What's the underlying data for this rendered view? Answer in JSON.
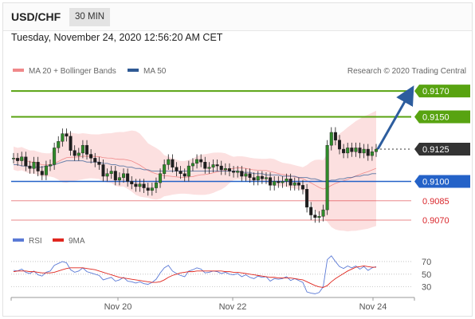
{
  "header": {
    "pair": "USD/CHF",
    "timeframe": "30 MIN",
    "date": "Tuesday, November 24, 2020 12:56:20 AM CET"
  },
  "legend": {
    "ma20": "MA 20 + Bollinger Bands",
    "ma50": "MA 50",
    "rsi": "RSI",
    "rsi_ma": "9MA",
    "credit": "Research © 2020 Trading Central"
  },
  "colors": {
    "green_level": "#58a311",
    "blue_level": "#2462c8",
    "red_level": "#d9262b",
    "dark_level": "#333333",
    "bollinger": "#fbd5d5",
    "ma50": "#2f5a94",
    "rsi": "#5b7ad6",
    "rsi_ma": "#e0271f",
    "arrow": "#2d5d9e"
  },
  "chart_data": {
    "type": "line",
    "title": "USD/CHF",
    "price_axis": {
      "ylim": [
        0.9062,
        0.918
      ]
    },
    "x_ticks": [
      "Nov 20",
      "Nov 22",
      "Nov 24"
    ],
    "levels": [
      {
        "label": "0.9170",
        "value": 0.917,
        "kind": "resistance",
        "style": "green"
      },
      {
        "label": "0.9150",
        "value": 0.915,
        "kind": "resistance",
        "style": "green"
      },
      {
        "label": "0.9125",
        "value": 0.9125,
        "kind": "last",
        "style": "dark"
      },
      {
        "label": "0.9100",
        "value": 0.91,
        "kind": "pivot",
        "style": "blue"
      },
      {
        "label": "0.9085",
        "value": 0.9085,
        "kind": "support",
        "style": "red"
      },
      {
        "label": "0.9070",
        "value": 0.907,
        "kind": "support",
        "style": "red"
      }
    ],
    "price_series": [
      {
        "name": "USD/CHF",
        "values": [
          0.9118,
          0.9116,
          0.9119,
          0.9112,
          0.911,
          0.9115,
          0.9108,
          0.9105,
          0.9112,
          0.9113,
          0.9126,
          0.9131,
          0.9137,
          0.9135,
          0.9124,
          0.912,
          0.9122,
          0.9128,
          0.9121,
          0.9118,
          0.9115,
          0.9113,
          0.9104,
          0.9106,
          0.9108,
          0.9101,
          0.9103,
          0.9106,
          0.91,
          0.9098,
          0.9096,
          0.9098,
          0.9095,
          0.9093,
          0.9095,
          0.9099,
          0.9106,
          0.9113,
          0.9117,
          0.9111,
          0.9108,
          0.9106,
          0.9104,
          0.9112,
          0.9114,
          0.9117,
          0.9115,
          0.911,
          0.9111,
          0.9113,
          0.9112,
          0.9109,
          0.911,
          0.9108,
          0.9107,
          0.9108,
          0.9104,
          0.9106,
          0.9103,
          0.9101,
          0.9104,
          0.9102,
          0.9103,
          0.9097,
          0.91,
          0.9099,
          0.91,
          0.9102,
          0.9097,
          0.9099,
          0.9097,
          0.9094,
          0.908,
          0.9074,
          0.9072,
          0.9073,
          0.9078,
          0.9128,
          0.9138,
          0.9132,
          0.9125,
          0.9122,
          0.9126,
          0.9123,
          0.9126,
          0.9122,
          0.9125,
          0.912,
          0.9123,
          0.9125
        ]
      },
      {
        "name": "MA 50",
        "values": [
          0.9113,
          0.9113,
          0.9112,
          0.9112,
          0.9111,
          0.9111,
          0.9111,
          0.9111,
          0.9112,
          0.9112,
          0.9113,
          0.9114,
          0.9115,
          0.9116,
          0.9116,
          0.9116,
          0.9116,
          0.9116,
          0.9115,
          0.9115,
          0.9115,
          0.9115,
          0.9114,
          0.9114,
          0.9113,
          0.9113,
          0.9112,
          0.9112,
          0.9111,
          0.9111,
          0.911,
          0.911,
          0.9109,
          0.9109,
          0.9108,
          0.9108,
          0.9108,
          0.9108,
          0.9108,
          0.9108,
          0.9108,
          0.9108,
          0.9108,
          0.9108,
          0.9108,
          0.9108,
          0.9108,
          0.9108,
          0.9108,
          0.9108,
          0.9108,
          0.9108,
          0.9108,
          0.9108,
          0.9108,
          0.9108,
          0.9107,
          0.9107,
          0.9107,
          0.9106,
          0.9106,
          0.9106,
          0.9105,
          0.9105,
          0.9105,
          0.9105,
          0.9104,
          0.9104,
          0.9104,
          0.9104,
          0.9103,
          0.9103,
          0.9103,
          0.9102,
          0.9102,
          0.9101,
          0.91,
          0.91,
          0.9101,
          0.9101,
          0.9102,
          0.9102,
          0.9103,
          0.9103,
          0.9104,
          0.9104,
          0.9105,
          0.9105,
          0.9106,
          0.9106
        ]
      }
    ],
    "rsi": {
      "ticks": [
        70,
        50,
        30
      ],
      "ylim": [
        22,
        80
      ],
      "rsi": [
        56,
        55,
        58,
        53,
        51,
        55,
        49,
        47,
        53,
        55,
        64,
        67,
        70,
        68,
        57,
        53,
        55,
        60,
        54,
        52,
        50,
        48,
        41,
        43,
        45,
        39,
        41,
        45,
        39,
        38,
        36,
        38,
        35,
        34,
        37,
        42,
        52,
        60,
        64,
        55,
        51,
        48,
        46,
        55,
        57,
        60,
        58,
        52,
        53,
        55,
        54,
        51,
        53,
        50,
        49,
        51,
        46,
        49,
        45,
        43,
        47,
        45,
        46,
        39,
        43,
        42,
        43,
        46,
        40,
        43,
        40,
        37,
        22,
        20,
        19,
        21,
        30,
        73,
        79,
        70,
        62,
        59,
        63,
        60,
        63,
        58,
        62,
        56,
        60,
        62
      ],
      "ma": [
        54,
        55,
        55,
        55,
        54,
        54,
        53,
        52,
        52,
        52,
        53,
        55,
        57,
        59,
        60,
        60,
        60,
        60,
        59,
        58,
        57,
        55,
        53,
        51,
        49,
        47,
        45,
        44,
        43,
        42,
        41,
        40,
        39,
        38,
        37,
        37,
        38,
        41,
        45,
        48,
        50,
        52,
        53,
        54,
        54,
        55,
        55,
        55,
        55,
        55,
        55,
        55,
        54,
        54,
        53,
        53,
        52,
        51,
        50,
        49,
        48,
        47,
        46,
        45,
        45,
        44,
        44,
        44,
        44,
        43,
        42,
        41,
        38,
        35,
        32,
        30,
        29,
        32,
        38,
        43,
        47,
        51,
        55,
        58,
        61,
        62,
        63,
        62,
        61,
        61
      ]
    },
    "arrow": {
      "from": 0.9125,
      "to": 0.917,
      "direction": "up"
    }
  }
}
